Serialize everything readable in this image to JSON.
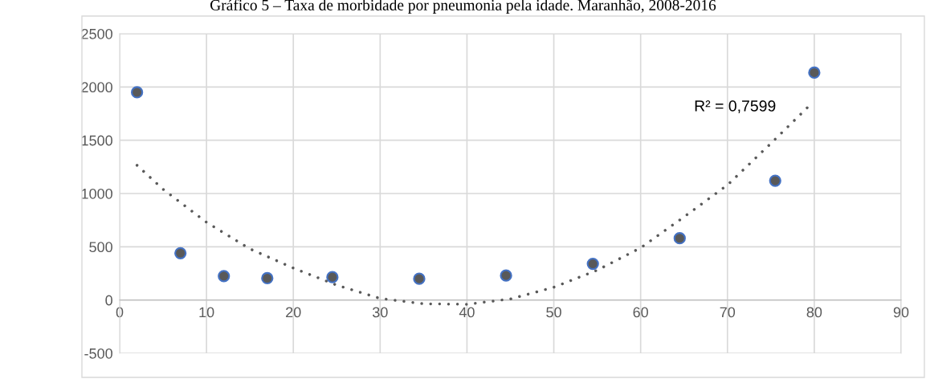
{
  "chart_data": {
    "type": "scatter",
    "title": "Gráfico 5 – Taxa de morbidade por pneumonia pela idade. Maranhão, 2008-2016",
    "series": [
      {
        "marker": "circle",
        "color": "#595959",
        "x": [
          2,
          7,
          12,
          17,
          24.5,
          34.5,
          44.5,
          54.5,
          64.5,
          75.5,
          80
        ],
        "values": [
          1950,
          440,
          225,
          205,
          215,
          200,
          230,
          340,
          580,
          1120,
          2135
        ]
      },
      {
        "type": "line",
        "line_style": "dotted",
        "color": "#595959",
        "x": [
          2,
          5,
          10,
          15,
          20,
          25,
          30,
          35,
          40,
          45,
          50,
          55,
          60,
          65,
          70,
          75,
          79.5
        ],
        "values": [
          1265,
          1040,
          730,
          480,
          300,
          140,
          15,
          -35,
          -40,
          10,
          120,
          280,
          490,
          780,
          1080,
          1470,
          1830
        ]
      }
    ],
    "annotations": [
      "R² = 0,7599"
    ],
    "xlim": [
      0,
      90
    ],
    "xticks": [
      0,
      10,
      20,
      30,
      40,
      50,
      60,
      70,
      80,
      90
    ],
    "ylim": [
      -500,
      2500
    ],
    "yticks": [
      -500,
      0,
      500,
      1000,
      1500,
      2000,
      2500
    ],
    "grid": true
  }
}
